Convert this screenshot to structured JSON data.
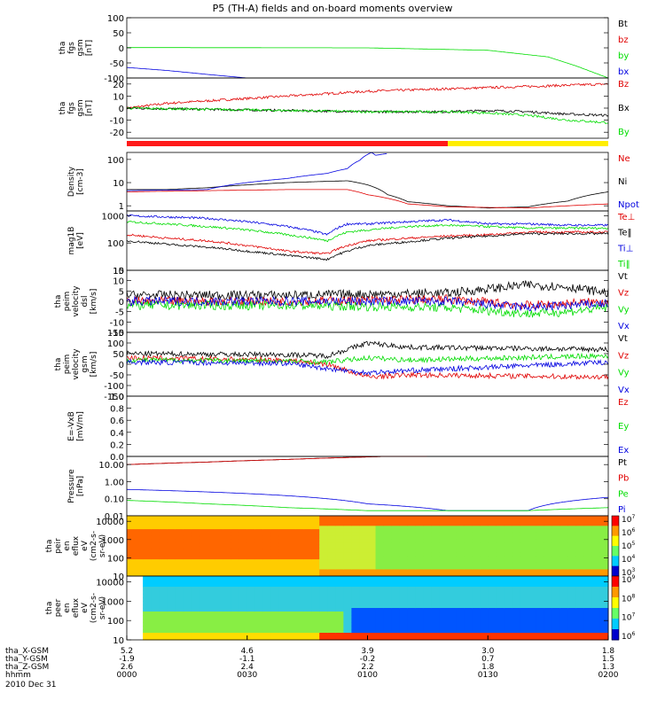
{
  "title": "P5 (TH-A) fields and on-board moments overview",
  "colors": {
    "black": "#000000",
    "red": "#e00000",
    "green": "#00dd00",
    "blue": "#0000e0",
    "yellow": "#ffee00",
    "bar_red": "#ff1a1a"
  },
  "chart_data": [
    {
      "id": "p1",
      "type": "line",
      "ylabel": [
        "tha",
        "fgs",
        "gsm",
        "[nT]"
      ],
      "yticks": [
        "100",
        "50",
        "0",
        "-50",
        "-100"
      ],
      "ylim": [
        -100,
        100
      ],
      "legend": [
        {
          "label": "Bt",
          "color": "#000000"
        },
        {
          "label": "bz",
          "color": "#e00000"
        },
        {
          "label": "by",
          "color": "#00dd00"
        },
        {
          "label": "bx",
          "color": "#0000e0"
        }
      ],
      "series": [
        {
          "name": "by",
          "color": "#00dd00",
          "x": [
            0,
            60,
            90,
            105,
            112,
            120
          ],
          "y": [
            1,
            0,
            -8,
            -30,
            -60,
            -100
          ]
        },
        {
          "name": "bx",
          "color": "#0000e0",
          "x": [
            0,
            10,
            20,
            30
          ],
          "y": [
            -65,
            -75,
            -88,
            -100
          ]
        }
      ]
    },
    {
      "id": "p2",
      "type": "line",
      "ylabel": [
        "tha",
        "fgs",
        "gsm",
        "[nT]"
      ],
      "yticks": [
        "20",
        "10",
        "0",
        "-10",
        "-20"
      ],
      "ylim": [
        -25,
        25
      ],
      "legend": [
        {
          "label": "Bz",
          "color": "#e00000"
        },
        {
          "label": "Bx",
          "color": "#000000"
        },
        {
          "label": "By",
          "color": "#00dd00"
        }
      ],
      "series": [
        {
          "name": "Bz",
          "color": "#e00000",
          "x": [
            0,
            10,
            20,
            30,
            40,
            50,
            60,
            70,
            80,
            90,
            100,
            110,
            120
          ],
          "y": [
            0,
            4,
            6,
            8,
            10,
            12,
            14,
            15,
            16,
            17,
            18,
            19,
            20
          ]
        },
        {
          "name": "Bx",
          "color": "#000000",
          "x": [
            0,
            20,
            40,
            60,
            80,
            90,
            100,
            110,
            120
          ],
          "y": [
            0,
            -1,
            -2,
            -3,
            -3,
            -2,
            -3,
            -5,
            -6
          ]
        },
        {
          "name": "By",
          "color": "#00dd00",
          "x": [
            0,
            20,
            40,
            60,
            80,
            90,
            100,
            110,
            120
          ],
          "y": [
            0,
            -1,
            -2,
            -3,
            -3,
            -4,
            -6,
            -10,
            -12
          ]
        }
      ]
    },
    {
      "id": "p3",
      "type": "line",
      "ylabel": [
        "Density",
        "[cm-3]"
      ],
      "yticks": [
        "100",
        "10",
        "1"
      ],
      "ylim": [
        0.6,
        200
      ],
      "yscale": "log",
      "legend": [
        {
          "label": "Ne",
          "color": "#e00000"
        },
        {
          "label": "Ni",
          "color": "#000000"
        },
        {
          "label": "Npot",
          "color": "#0000e0"
        }
      ],
      "series": [
        {
          "name": "Ni",
          "color": "#000000",
          "x": [
            0,
            10,
            20,
            40,
            55,
            60,
            65,
            70,
            80,
            90,
            100,
            110,
            120
          ],
          "y": [
            5,
            5,
            6,
            10,
            12,
            8,
            3,
            1.5,
            1.0,
            0.8,
            0.9,
            1.6,
            4
          ]
        },
        {
          "name": "Ne",
          "color": "#e00000",
          "x": [
            0,
            20,
            40,
            55,
            60,
            70,
            80,
            100,
            120
          ],
          "y": [
            4,
            4.5,
            5,
            5,
            3,
            1.2,
            0.9,
            0.8,
            1.2
          ]
        },
        {
          "name": "Npot",
          "color": "#0000e0",
          "x": [
            0,
            20,
            40,
            50,
            55,
            58,
            61,
            62,
            65
          ],
          "y": [
            4.5,
            5,
            15,
            25,
            40,
            90,
            200,
            150,
            180
          ]
        }
      ]
    },
    {
      "id": "p4",
      "type": "line",
      "ylabel": [
        "mag1B",
        "[eV]"
      ],
      "yticks": [
        "1000",
        "100",
        "10"
      ],
      "ylim": [
        10,
        1500
      ],
      "yscale": "log",
      "legend": [
        {
          "label": "Te⊥",
          "color": "#e00000"
        },
        {
          "label": "Te‖",
          "color": "#000000"
        },
        {
          "label": "Ti⊥",
          "color": "#0000e0"
        },
        {
          "label": "Ti‖",
          "color": "#00dd00"
        }
      ],
      "series": [
        {
          "name": "Ti⊥",
          "color": "#0000e0",
          "x": [
            0,
            10,
            20,
            30,
            40,
            50,
            55,
            60,
            70,
            80,
            90,
            100,
            110,
            120
          ],
          "y": [
            1000,
            900,
            800,
            600,
            400,
            200,
            500,
            500,
            600,
            700,
            500,
            500,
            450,
            450
          ]
        },
        {
          "name": "Ti‖",
          "color": "#00dd00",
          "x": [
            0,
            10,
            20,
            30,
            40,
            50,
            55,
            60,
            70,
            80,
            90,
            100,
            110,
            120
          ],
          "y": [
            600,
            500,
            400,
            300,
            200,
            120,
            250,
            300,
            400,
            450,
            400,
            350,
            350,
            350
          ]
        },
        {
          "name": "Te⊥",
          "color": "#e00000",
          "x": [
            0,
            10,
            20,
            30,
            40,
            50,
            55,
            60,
            70,
            80,
            90,
            100,
            110,
            120
          ],
          "y": [
            200,
            150,
            120,
            80,
            50,
            40,
            80,
            120,
            150,
            180,
            200,
            250,
            250,
            250
          ]
        },
        {
          "name": "Te‖",
          "color": "#000000",
          "x": [
            0,
            10,
            20,
            30,
            40,
            50,
            55,
            60,
            70,
            80,
            90,
            100,
            110,
            120
          ],
          "y": [
            120,
            90,
            70,
            50,
            35,
            25,
            50,
            80,
            110,
            150,
            180,
            220,
            220,
            220
          ]
        }
      ]
    },
    {
      "id": "p5",
      "type": "line",
      "ylabel": [
        "tha",
        "peim",
        "velocity",
        "dsl",
        "[km/s]"
      ],
      "yticks": [
        "15",
        "10",
        "5",
        "0",
        "-5",
        "-10",
        "-15"
      ],
      "ylim": [
        -15,
        15
      ],
      "legend": [
        {
          "label": "Vt",
          "color": "#000000"
        },
        {
          "label": "Vz",
          "color": "#e00000"
        },
        {
          "label": "Vy",
          "color": "#00dd00"
        },
        {
          "label": "Vx",
          "color": "#0000e0"
        }
      ],
      "series": [
        {
          "name": "Vt",
          "color": "#000000",
          "x": [
            0,
            40,
            80,
            100,
            110,
            120
          ],
          "y": [
            3,
            3,
            4,
            8,
            7,
            4
          ]
        },
        {
          "name": "Vz",
          "color": "#e00000",
          "x": [
            0,
            40,
            80,
            100,
            110,
            120
          ],
          "y": [
            0,
            0,
            1,
            -2,
            -1,
            0
          ]
        },
        {
          "name": "Vy",
          "color": "#00dd00",
          "x": [
            0,
            40,
            80,
            100,
            110,
            120
          ],
          "y": [
            -2,
            -2,
            -3,
            -6,
            -5,
            -3
          ]
        },
        {
          "name": "Vx",
          "color": "#0000e0",
          "x": [
            0,
            40,
            80,
            100,
            110,
            120
          ],
          "y": [
            0,
            0,
            0,
            -3,
            -2,
            -1
          ]
        }
      ]
    },
    {
      "id": "p6",
      "type": "line",
      "ylabel": [
        "tha",
        "peim",
        "velocity",
        "gsm",
        "[km/s]"
      ],
      "yticks": [
        "150",
        "100",
        "50",
        "0",
        "-50",
        "-100",
        "-150"
      ],
      "ylim": [
        -150,
        150
      ],
      "legend": [
        {
          "label": "Vt",
          "color": "#000000"
        },
        {
          "label": "Vz",
          "color": "#e00000"
        },
        {
          "label": "Vy",
          "color": "#00dd00"
        },
        {
          "label": "Vx",
          "color": "#0000e0"
        }
      ],
      "series": [
        {
          "name": "Vt",
          "color": "#000000",
          "x": [
            0,
            40,
            50,
            60,
            70,
            120
          ],
          "y": [
            50,
            45,
            40,
            100,
            80,
            70
          ]
        },
        {
          "name": "Vz",
          "color": "#e00000",
          "x": [
            0,
            40,
            50,
            60,
            70,
            120
          ],
          "y": [
            30,
            20,
            0,
            -60,
            -50,
            -60
          ]
        },
        {
          "name": "Vy",
          "color": "#00dd00",
          "x": [
            0,
            40,
            50,
            60,
            70,
            120
          ],
          "y": [
            20,
            15,
            10,
            30,
            20,
            40
          ]
        },
        {
          "name": "Vx",
          "color": "#0000e0",
          "x": [
            0,
            40,
            50,
            60,
            70,
            120
          ],
          "y": [
            10,
            5,
            -20,
            -40,
            -30,
            10
          ]
        }
      ]
    },
    {
      "id": "p7",
      "type": "line",
      "ylabel": [
        "E=-VxB",
        "[mV/m]"
      ],
      "yticks": [
        "1.0",
        "0.8",
        "0.6",
        "0.4",
        "0.2",
        "0.0"
      ],
      "ylim": [
        0,
        1
      ],
      "legend": [
        {
          "label": "Ez",
          "color": "#e00000"
        },
        {
          "label": "Ey",
          "color": "#00dd00"
        },
        {
          "label": "Ex",
          "color": "#0000e0"
        }
      ],
      "series": []
    },
    {
      "id": "p8",
      "type": "line",
      "ylabel": [
        "Pressure",
        "[nPa]"
      ],
      "yticks": [
        "10.00",
        "1.00",
        "0.10",
        "0.01"
      ],
      "ylim": [
        0.01,
        30
      ],
      "yscale": "log",
      "legend": [
        {
          "label": "Pt",
          "color": "#000000"
        },
        {
          "label": "Pb",
          "color": "#e00000"
        },
        {
          "label": "Pe",
          "color": "#00dd00"
        },
        {
          "label": "Pi",
          "color": "#0000e0"
        }
      ],
      "series": [
        {
          "name": "Pt",
          "color": "#000000",
          "x": [
            0,
            20,
            40,
            60,
            75
          ],
          "y": [
            10,
            14,
            20,
            28,
            35
          ]
        },
        {
          "name": "Pb",
          "color": "#e00000",
          "x": [
            0,
            20,
            40,
            60,
            75
          ],
          "y": [
            10,
            14,
            20,
            28,
            35
          ]
        },
        {
          "name": "Pi",
          "color": "#0000e0",
          "x": [
            0,
            20,
            40,
            60,
            80,
            100,
            120
          ],
          "y": [
            0.35,
            0.25,
            0.15,
            0.05,
            0.02,
            0.02,
            0.12
          ]
        },
        {
          "name": "Pe",
          "color": "#00dd00",
          "x": [
            0,
            20,
            40,
            60,
            80,
            100,
            120
          ],
          "y": [
            0.08,
            0.05,
            0.03,
            0.02,
            0.02,
            0.02,
            0.03
          ]
        }
      ]
    },
    {
      "id": "p9",
      "type": "heatmap",
      "ylabel": [
        "tha",
        "peir",
        "en",
        "eflux",
        "eV",
        "(cm2-s-",
        "sr-eV)"
      ],
      "yticks": [
        "10000",
        "1000",
        "100",
        "10"
      ],
      "ylim": [
        10,
        20000
      ],
      "yscale": "log",
      "colorbar": {
        "labels": [
          "10^7",
          "10^6",
          "10^5",
          "10^4",
          "10^3"
        ],
        "range_exp": [
          3,
          7
        ]
      }
    },
    {
      "id": "p10",
      "type": "heatmap",
      "ylabel": [
        "tha",
        "peer",
        "en",
        "eflux",
        "eV",
        "(cm2-s-",
        "sr-eV)"
      ],
      "yticks": [
        "10000",
        "1000",
        "100",
        "10"
      ],
      "ylim": [
        10,
        20000
      ],
      "yscale": "log",
      "colorbar": {
        "labels": [
          "10^9",
          "10^8",
          "10^7",
          "10^6"
        ],
        "range_exp": [
          6,
          9
        ]
      }
    }
  ],
  "xaxis": {
    "rows": [
      {
        "label": "tha_X-GSM",
        "values": [
          "5.2",
          "4.6",
          "3.9",
          "3.0",
          "1.8"
        ]
      },
      {
        "label": "tha_Y-GSM",
        "values": [
          "-1.9",
          "-1.1",
          "-0.2",
          "0.7",
          "1.5"
        ]
      },
      {
        "label": "tha_Z-GSM",
        "values": [
          "2.6",
          "2.4",
          "2.2",
          "1.8",
          "1.3"
        ]
      },
      {
        "label": "hhmm",
        "values": [
          "0000",
          "0030",
          "0100",
          "0130",
          "0200"
        ]
      }
    ],
    "date": "2010 Dec 31",
    "range_min": [
      0,
      120
    ]
  }
}
